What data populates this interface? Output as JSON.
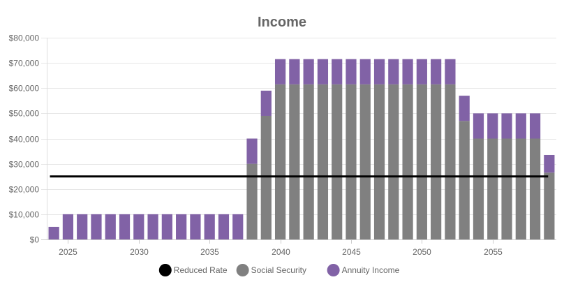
{
  "chart_data": {
    "type": "bar",
    "title": "Income",
    "xlabel": "",
    "ylabel": "",
    "stacked": true,
    "grid": true,
    "legend_position": "bottom",
    "x": [
      2024,
      2025,
      2026,
      2027,
      2028,
      2029,
      2030,
      2031,
      2032,
      2033,
      2034,
      2035,
      2036,
      2037,
      2038,
      2039,
      2040,
      2041,
      2042,
      2043,
      2044,
      2045,
      2046,
      2047,
      2048,
      2049,
      2050,
      2051,
      2052,
      2053,
      2054,
      2055,
      2056,
      2057,
      2058,
      2059
    ],
    "x_ticks": [
      2025,
      2030,
      2035,
      2040,
      2045,
      2050,
      2055
    ],
    "x_tick_labels": [
      "2025",
      "2030",
      "2035",
      "2040",
      "2045",
      "2050",
      "2055"
    ],
    "xlim": [
      2023.5,
      2059.5
    ],
    "ylim": [
      0,
      80000
    ],
    "y_ticks": [
      0,
      10000,
      20000,
      30000,
      40000,
      50000,
      60000,
      70000,
      80000
    ],
    "y_tick_labels": [
      "$0",
      "$10,000",
      "$20,000",
      "$30,000",
      "$40,000",
      "$50,000",
      "$60,000",
      "$70,000",
      "$80,000"
    ],
    "series": [
      {
        "name": "Reduced Rate",
        "type": "line",
        "color": "#000000",
        "values": [
          25000,
          25000,
          25000,
          25000,
          25000,
          25000,
          25000,
          25000,
          25000,
          25000,
          25000,
          25000,
          25000,
          25000,
          25000,
          25000,
          25000,
          25000,
          25000,
          25000,
          25000,
          25000,
          25000,
          25000,
          25000,
          25000,
          25000,
          25000,
          25000,
          25000,
          25000,
          25000,
          25000,
          25000,
          25000,
          25000
        ]
      },
      {
        "name": "Social Security",
        "type": "bar",
        "color": "#808080",
        "values": [
          0,
          0,
          0,
          0,
          0,
          0,
          0,
          0,
          0,
          0,
          0,
          0,
          0,
          0,
          30000,
          49000,
          61500,
          61500,
          61500,
          61500,
          61500,
          61500,
          61500,
          61500,
          61500,
          61500,
          61500,
          61500,
          61500,
          47000,
          40000,
          40000,
          40000,
          40000,
          40000,
          26500
        ]
      },
      {
        "name": "Annuity Income",
        "type": "bar",
        "color": "#8162a6",
        "values": [
          5000,
          10000,
          10000,
          10000,
          10000,
          10000,
          10000,
          10000,
          10000,
          10000,
          10000,
          10000,
          10000,
          10000,
          10000,
          10000,
          10000,
          10000,
          10000,
          10000,
          10000,
          10000,
          10000,
          10000,
          10000,
          10000,
          10000,
          10000,
          10000,
          10000,
          10000,
          10000,
          10000,
          10000,
          10000,
          7000
        ]
      }
    ]
  }
}
